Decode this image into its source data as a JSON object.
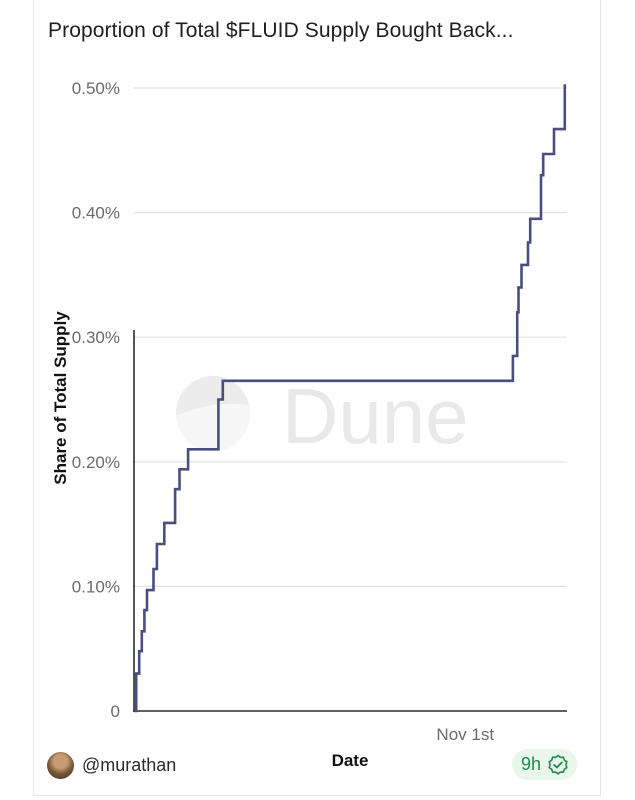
{
  "title": "Proportion of Total $FLUID Supply Bought Back...",
  "footer": {
    "username": "@murathan",
    "time_badge": "9h"
  },
  "watermark": "Dune",
  "colors": {
    "line": "#4a4e7f",
    "grid": "#e3e3e3",
    "axis": "#2b2b2b",
    "badge_text": "#1f8a4c",
    "badge_bg": "#e8f6ec"
  },
  "chart_data": {
    "type": "line",
    "step": true,
    "title": "Proportion of Total $FLUID Supply Bought Back...",
    "xlabel": "Date",
    "ylabel": "Share of Total Supply",
    "ylim": [
      0,
      0.5
    ],
    "xlim": [
      0,
      100
    ],
    "yticks": [
      {
        "value": 0,
        "label": "0"
      },
      {
        "value": 0.1,
        "label": "0.10%"
      },
      {
        "value": 0.2,
        "label": "0.20%"
      },
      {
        "value": 0.3,
        "label": "0.30%"
      },
      {
        "value": 0.4,
        "label": "0.40%"
      },
      {
        "value": 0.5,
        "label": "0.50%"
      }
    ],
    "xticks": [
      {
        "value": 76.5,
        "label": "Nov 1st"
      }
    ],
    "series": [
      {
        "name": "Share of Total Supply (%)",
        "points": [
          [
            0.0,
            0.0
          ],
          [
            0.5,
            0.03
          ],
          [
            1.2,
            0.048
          ],
          [
            1.8,
            0.064
          ],
          [
            2.4,
            0.081
          ],
          [
            3.0,
            0.097
          ],
          [
            4.5,
            0.114
          ],
          [
            5.3,
            0.134
          ],
          [
            7.0,
            0.151
          ],
          [
            9.5,
            0.178
          ],
          [
            10.5,
            0.194
          ],
          [
            12.5,
            0.21
          ],
          [
            19.5,
            0.25
          ],
          [
            20.5,
            0.265
          ],
          [
            87.5,
            0.285
          ],
          [
            88.5,
            0.32
          ],
          [
            88.8,
            0.34
          ],
          [
            89.5,
            0.358
          ],
          [
            91.0,
            0.376
          ],
          [
            91.5,
            0.395
          ],
          [
            94.0,
            0.43
          ],
          [
            94.5,
            0.447
          ],
          [
            97.0,
            0.467
          ],
          [
            99.5,
            0.503
          ]
        ]
      }
    ]
  }
}
